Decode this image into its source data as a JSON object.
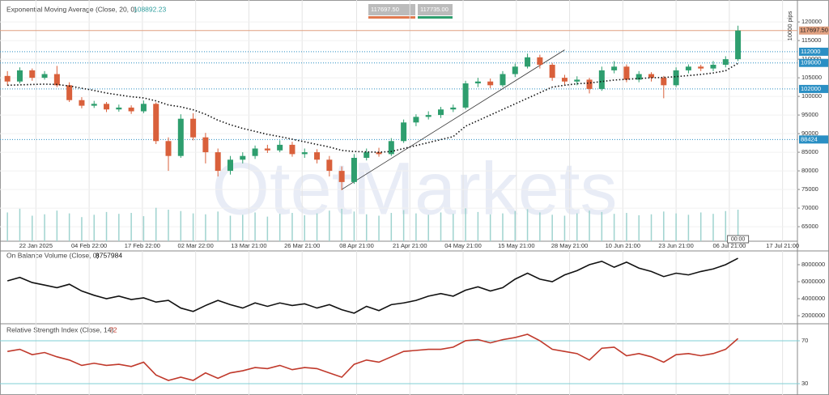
{
  "toolbar": {
    "bid": "117697.50",
    "ask": "117735.00"
  },
  "watermark": "OtetMarkets",
  "chart_data": [
    {
      "type": "candlestick",
      "title": "Exponential Moving Average (Close, 20, 0)",
      "up_color": "#2e9e6e",
      "down_color": "#d9603b",
      "xlim": [
        -0.6,
        63.8
      ],
      "xticks": [
        {
          "value": 2.3,
          "label": "22 Jan 2025"
        },
        {
          "value": 6.6,
          "label": "04 Feb 22:00"
        },
        {
          "value": 10.9,
          "label": "17 Feb 22:00"
        },
        {
          "value": 15.2,
          "label": "02 Mar 22:00"
        },
        {
          "value": 19.5,
          "label": "13 Mar 21:00"
        },
        {
          "value": 23.8,
          "label": "26 Mar 21:00"
        },
        {
          "value": 28.2,
          "label": "08 Apr 21:00"
        },
        {
          "value": 32.5,
          "label": "21 Apr 21:00"
        },
        {
          "value": 36.8,
          "label": "04 May 21:00"
        },
        {
          "value": 41.1,
          "label": "15 May 21:00"
        },
        {
          "value": 45.4,
          "label": "28 May 21:00"
        },
        {
          "value": 49.7,
          "label": "10 Jun 21:00"
        },
        {
          "value": 54.0,
          "label": "23 Jun 21:00"
        },
        {
          "value": 58.3,
          "label": "06 Jul 21:00"
        },
        {
          "value": 62.6,
          "label": "17 Jul 21:00"
        }
      ],
      "ylim": [
        61100,
        125900
      ],
      "yticks": [
        65000,
        70000,
        75000,
        80000,
        85000,
        90000,
        95000,
        100000,
        105000,
        110000,
        115000,
        120000
      ],
      "axis_unit": "10000 pips",
      "time_label": "00:00",
      "candles": [
        [
          105500,
          106800,
          103000,
          104000
        ],
        [
          104000,
          107800,
          103500,
          107000
        ],
        [
          107000,
          107500,
          104200,
          105000
        ],
        [
          105000,
          106800,
          104500,
          106000
        ],
        [
          106000,
          108200,
          102500,
          103000
        ],
        [
          103000,
          103800,
          98500,
          99000
        ],
        [
          99000,
          99800,
          96800,
          97500
        ],
        [
          97500,
          98800,
          96900,
          98000
        ],
        [
          98000,
          98500,
          95800,
          96500
        ],
        [
          96500,
          97800,
          95900,
          97000
        ],
        [
          97000,
          97600,
          95300,
          96000
        ],
        [
          96000,
          98900,
          95500,
          98000
        ],
        [
          98000,
          98400,
          87200,
          88000
        ],
        [
          88000,
          89000,
          80000,
          84000
        ],
        [
          84000,
          95200,
          83500,
          94000
        ],
        [
          94000,
          95500,
          88200,
          89000
        ],
        [
          89000,
          90200,
          82000,
          85000
        ],
        [
          85000,
          86000,
          78500,
          80000
        ],
        [
          80000,
          84000,
          79000,
          83000
        ],
        [
          83000,
          85000,
          82000,
          84000
        ],
        [
          84000,
          86800,
          83200,
          86000
        ],
        [
          86000,
          87000,
          84800,
          85500
        ],
        [
          85500,
          88200,
          85000,
          87000
        ],
        [
          87000,
          87800,
          83800,
          84500
        ],
        [
          84500,
          86000,
          83500,
          85000
        ],
        [
          85000,
          85800,
          82000,
          83000
        ],
        [
          83000,
          84000,
          78500,
          80000
        ],
        [
          80000,
          81200,
          74800,
          77000
        ],
        [
          77000,
          84500,
          76500,
          83500
        ],
        [
          83500,
          86000,
          82800,
          85000
        ],
        [
          85000,
          86200,
          83800,
          84500
        ],
        [
          84500,
          88800,
          84000,
          88000
        ],
        [
          88000,
          93800,
          87500,
          93000
        ],
        [
          93000,
          95200,
          92000,
          94500
        ],
        [
          94500,
          96000,
          93800,
          95000
        ],
        [
          95000,
          97200,
          94200,
          96500
        ],
        [
          96500,
          97800,
          95800,
          97000
        ],
        [
          97000,
          104200,
          96500,
          103500
        ],
        [
          103500,
          105000,
          102500,
          104000
        ],
        [
          104000,
          104800,
          102200,
          103000
        ],
        [
          103000,
          106800,
          102500,
          106000
        ],
        [
          106000,
          108800,
          105200,
          108000
        ],
        [
          108000,
          111500,
          107500,
          110500
        ],
        [
          110500,
          111200,
          107500,
          108500
        ],
        [
          108500,
          109000,
          104200,
          105000
        ],
        [
          105000,
          105800,
          103200,
          104000
        ],
        [
          104000,
          105400,
          103000,
          104500
        ],
        [
          104500,
          105000,
          100800,
          102000
        ],
        [
          102000,
          108000,
          101500,
          107000
        ],
        [
          107000,
          109500,
          106200,
          108000
        ],
        [
          108000,
          108600,
          103800,
          104500
        ],
        [
          104500,
          106800,
          103800,
          106000
        ],
        [
          106000,
          106500,
          104000,
          105000
        ],
        [
          105000,
          105500,
          99500,
          103000
        ],
        [
          103000,
          107800,
          102500,
          107000
        ],
        [
          107000,
          108600,
          106200,
          108000
        ],
        [
          108000,
          108500,
          106800,
          107500
        ],
        [
          107500,
          109500,
          106800,
          108500
        ],
        [
          108500,
          110800,
          107800,
          110000
        ],
        [
          110000,
          119000,
          109500,
          117697.5
        ]
      ],
      "ema": {
        "color": "#111111",
        "values": [
          103000,
          103100,
          103200,
          103300,
          103200,
          102800,
          102200,
          101600,
          100900,
          100400,
          99900,
          99600,
          98800,
          97700,
          97200,
          96400,
          95200,
          93600,
          92400,
          91400,
          90600,
          89800,
          89200,
          88500,
          87800,
          87100,
          86400,
          85500,
          85200,
          85100,
          85000,
          85200,
          86000,
          86800,
          87600,
          88400,
          89200,
          92000,
          93500,
          95000,
          96500,
          98000,
          99500,
          101000,
          102500,
          103000,
          103400,
          103600,
          104000,
          104400,
          104600,
          104800,
          105000,
          105100,
          105300,
          105600,
          105900,
          106300,
          106900,
          108892.23
        ]
      },
      "volume_color": "#9fd3cf",
      "volume_ylim": [
        0,
        520
      ],
      "volume": [
        62,
        70,
        55,
        58,
        66,
        60,
        52,
        57,
        63,
        59,
        61,
        54,
        72,
        68,
        65,
        60,
        58,
        64,
        55,
        57,
        62,
        53,
        59,
        61,
        56,
        60,
        66,
        70,
        64,
        58,
        55,
        61,
        67,
        60,
        57,
        62,
        59,
        71,
        63,
        58,
        60,
        65,
        69,
        62,
        57,
        55,
        60,
        66,
        63,
        59,
        61,
        56,
        58,
        64,
        60,
        57,
        62,
        59,
        65,
        68
      ],
      "volume_panel_share": 1,
      "levels": [
        112000,
        109000,
        102000,
        88424
      ],
      "level_color": "#2a8fc4",
      "last_price": {
        "value": 117697.5,
        "label": "117697.50"
      },
      "last_price_color": "#e0a080",
      "trendline": {
        "x": [
          27,
          45
        ],
        "y": [
          75000,
          112500
        ]
      }
    },
    {
      "type": "line",
      "title": "On Balance Volume (Close, 0)",
      "color": "#111111",
      "ylim": [
        1050000,
        9620000
      ],
      "yticks": [
        2000000,
        4000000,
        6000000,
        8000000
      ],
      "values": [
        6100000,
        6500000,
        5900000,
        5600000,
        5300000,
        5700000,
        4900000,
        4400000,
        4000000,
        4300000,
        3900000,
        4100000,
        3600000,
        3800000,
        2900000,
        2500000,
        3200000,
        3800000,
        3300000,
        2900000,
        3500000,
        3100000,
        3500000,
        3200000,
        3400000,
        2900000,
        3300000,
        2700000,
        2300000,
        3100000,
        2600000,
        3300000,
        3500000,
        3800000,
        4300000,
        4600000,
        4300000,
        5000000,
        5400000,
        4900000,
        5300000,
        6300000,
        7000000,
        6300000,
        6000000,
        6800000,
        7300000,
        8000000,
        8400000,
        7700000,
        8300000,
        7600000,
        7200000,
        6600000,
        7000000,
        6800000,
        7200000,
        7500000,
        8000000,
        8757984
      ]
    },
    {
      "type": "line",
      "title": "Relative Strength Index (Close, 14)",
      "color": "#c0392b",
      "ylim": [
        19.4,
        85.8
      ],
      "yticks": [
        30,
        70
      ],
      "values": [
        60,
        62,
        57,
        59,
        55,
        52,
        47,
        49,
        47,
        48,
        46,
        50,
        38,
        33,
        36,
        33,
        40,
        35,
        40,
        42,
        45,
        44,
        47,
        43,
        45,
        44,
        40,
        36,
        48,
        52,
        50,
        55,
        60,
        61,
        62,
        62,
        64,
        70,
        71,
        68,
        71,
        73,
        76,
        70,
        62,
        60,
        58,
        52,
        63,
        64,
        56,
        58,
        55,
        50,
        57,
        58,
        56,
        58,
        62,
        72
      ]
    }
  ]
}
